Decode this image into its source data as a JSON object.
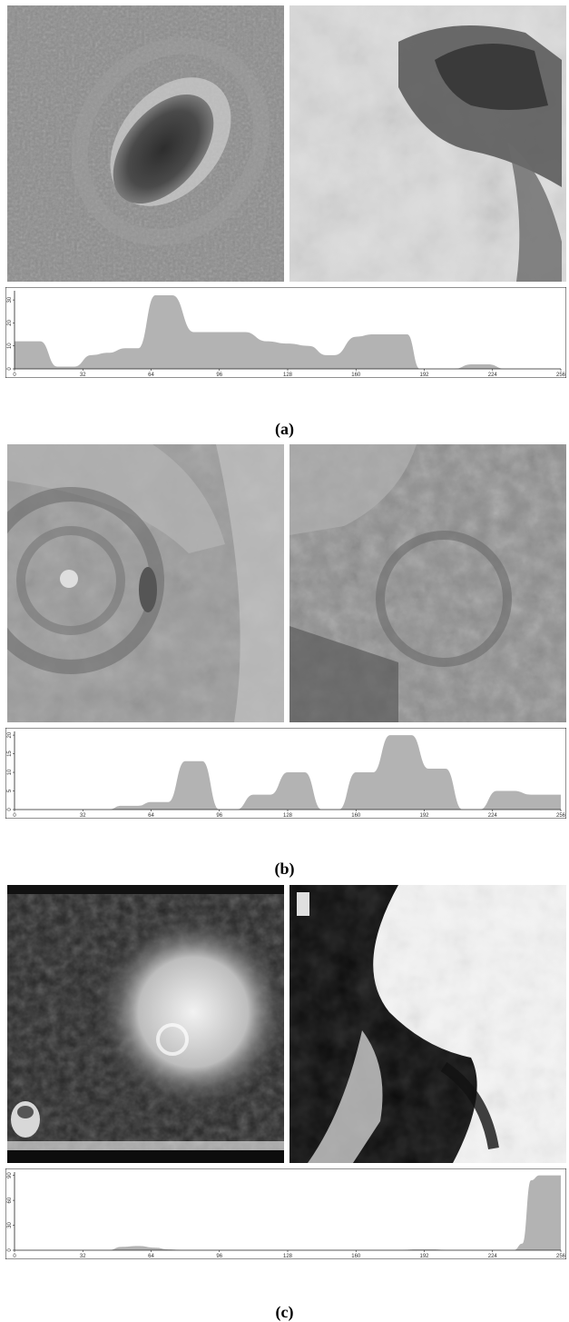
{
  "figures": [
    {
      "caption": "(a)",
      "chart_data": {
        "type": "area",
        "x_ticks": [
          0,
          32,
          64,
          96,
          128,
          160,
          192,
          224,
          256
        ],
        "y_ticks": [
          0,
          10,
          20,
          30
        ],
        "xlim": [
          0,
          256
        ],
        "ylim": [
          0,
          34
        ],
        "x": [
          0,
          12,
          20,
          28,
          36,
          44,
          52,
          58,
          66,
          74,
          84,
          96,
          108,
          118,
          128,
          138,
          146,
          150,
          160,
          168,
          176,
          184,
          190,
          198,
          206,
          214,
          222,
          230,
          240,
          256
        ],
        "y": [
          12,
          12,
          1,
          1,
          6,
          7,
          9,
          9,
          32,
          32,
          16,
          16,
          16,
          12,
          11,
          10,
          6,
          6,
          14,
          15,
          15,
          15,
          0,
          0,
          0,
          2,
          2,
          0,
          0,
          0
        ]
      }
    },
    {
      "caption": "(b)",
      "chart_data": {
        "type": "area",
        "x_ticks": [
          0,
          32,
          64,
          96,
          128,
          160,
          192,
          224,
          256
        ],
        "y_ticks": [
          0,
          5,
          10,
          15,
          20
        ],
        "xlim": [
          0,
          256
        ],
        "ylim": [
          0,
          21
        ],
        "x": [
          0,
          44,
          50,
          58,
          64,
          72,
          80,
          88,
          96,
          104,
          112,
          120,
          128,
          136,
          144,
          152,
          160,
          168,
          176,
          186,
          194,
          202,
          210,
          218,
          226,
          234,
          242,
          256
        ],
        "y": [
          0,
          0,
          1,
          1,
          2,
          2,
          13,
          13,
          0,
          0,
          4,
          4,
          10,
          10,
          0,
          0,
          10,
          10,
          20,
          20,
          11,
          11,
          0,
          0,
          5,
          5,
          4,
          4
        ]
      }
    },
    {
      "caption": "(c)",
      "chart_data": {
        "type": "area",
        "x_ticks": [
          0,
          32,
          64,
          96,
          128,
          160,
          192,
          224,
          256
        ],
        "y_ticks": [
          0,
          30,
          60,
          90
        ],
        "xlim": [
          0,
          256
        ],
        "ylim": [
          0,
          94
        ],
        "x": [
          0,
          44,
          50,
          58,
          66,
          72,
          80,
          120,
          180,
          188,
          196,
          204,
          228,
          234,
          238,
          242,
          246,
          256
        ],
        "y": [
          0,
          0,
          4,
          5,
          3,
          1,
          0,
          0,
          0,
          1,
          1,
          0,
          0,
          0,
          8,
          84,
          90,
          90
        ]
      }
    }
  ]
}
